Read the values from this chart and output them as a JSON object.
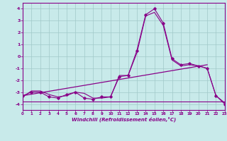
{
  "xlabel": "Windchill (Refroidissement éolien,°C)",
  "background_color": "#c8eaea",
  "grid_color": "#a0c8c8",
  "line_color": "#880088",
  "spine_color": "#880088",
  "x_hours": [
    0,
    1,
    2,
    3,
    4,
    5,
    6,
    7,
    8,
    9,
    10,
    11,
    12,
    13,
    14,
    15,
    16,
    17,
    18,
    19,
    20,
    21,
    22,
    23
  ],
  "windchill_line": [
    -3.3,
    -3.0,
    -3.0,
    -3.4,
    -3.5,
    -3.2,
    -3.0,
    -3.5,
    -3.6,
    -3.4,
    -3.4,
    -1.7,
    -1.6,
    0.5,
    3.5,
    4.0,
    2.8,
    -0.2,
    -0.7,
    -0.6,
    -0.8,
    -1.0,
    -3.3,
    -4.0
  ],
  "temp_line": [
    -3.4,
    -2.9,
    -2.9,
    -3.2,
    -3.4,
    -3.3,
    -3.0,
    -3.1,
    -3.5,
    -3.5,
    -3.4,
    -1.6,
    -1.6,
    0.3,
    3.4,
    3.7,
    2.6,
    -0.3,
    -0.8,
    -0.7,
    -0.8,
    -1.0,
    -3.3,
    -3.9
  ],
  "flat_line_x": [
    0,
    1,
    2,
    3,
    4,
    5,
    6,
    7,
    8,
    9,
    10,
    11,
    12,
    13,
    14,
    15,
    16,
    17,
    18,
    19,
    20,
    21,
    22,
    23
  ],
  "flat_line_y": [
    -3.8,
    -3.8,
    -3.8,
    -3.8,
    -3.8,
    -3.8,
    -3.8,
    -3.8,
    -3.8,
    -3.8,
    -3.8,
    -3.8,
    -3.8,
    -3.8,
    -3.8,
    -3.8,
    -3.8,
    -3.8,
    -3.8,
    -3.8,
    -3.8,
    -3.8,
    -3.8,
    -3.8
  ],
  "trend_line_x": [
    0,
    21
  ],
  "trend_line_y": [
    -3.3,
    -0.7
  ],
  "ylim": [
    -4.5,
    4.5
  ],
  "yticks": [
    -4,
    -3,
    -2,
    -1,
    0,
    1,
    2,
    3,
    4
  ],
  "xlim": [
    0,
    23
  ]
}
